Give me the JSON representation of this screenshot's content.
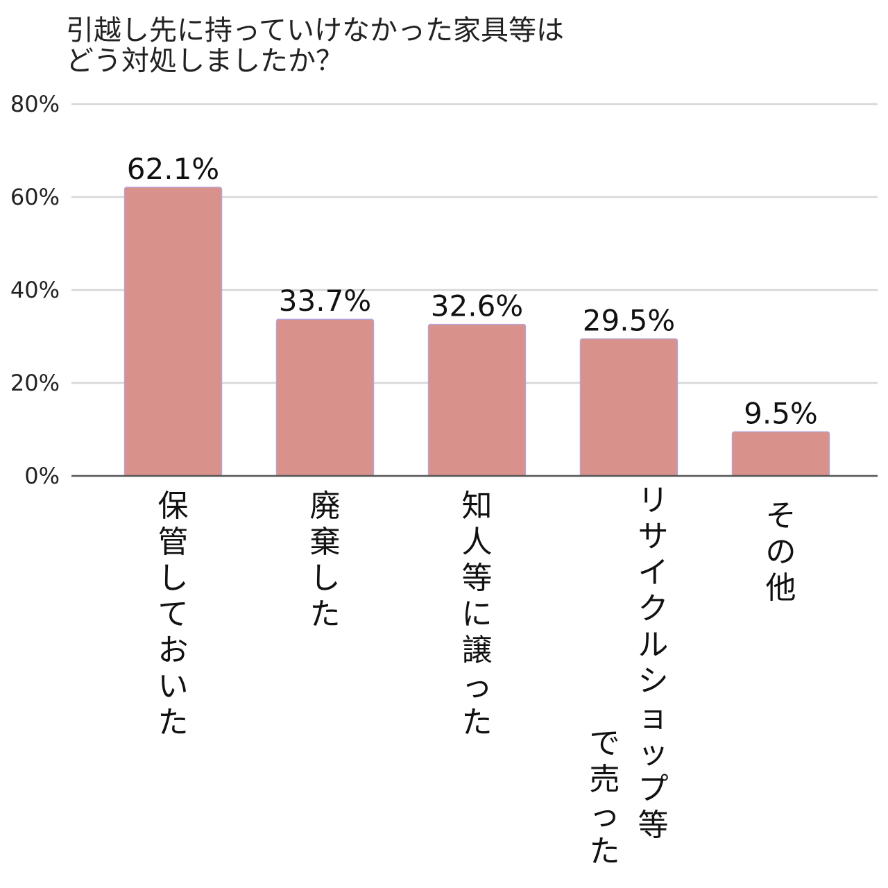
{
  "chart_data": {
    "type": "bar",
    "title_lines": [
      "引越し先に持っていけなかった家具等は",
      "どう対処しましたか？"
    ],
    "categories": [
      "保管しておいた",
      "廃棄した",
      "知人等に譲った",
      "リサイクルショップ等で売った",
      "その他"
    ],
    "category_label_columns": [
      [
        "保管しておいた"
      ],
      [
        "廃棄した"
      ],
      [
        "知人等に譲った"
      ],
      [
        "リサイクルショップ等",
        "で売った"
      ],
      [
        "その他"
      ]
    ],
    "values": [
      62.1,
      33.7,
      32.6,
      29.5,
      9.5
    ],
    "value_labels": [
      "62.1%",
      "33.7%",
      "32.6%",
      "29.5%",
      "9.5%"
    ],
    "ylim": [
      0,
      80
    ],
    "yticks": [
      0,
      20,
      40,
      60,
      80
    ],
    "ytick_labels": [
      "0%",
      "20%",
      "40%",
      "60%",
      "80%"
    ],
    "grid": true,
    "legend": "none",
    "bar_color": "#d9918b",
    "bar_edge_color": "#b7a3d6"
  }
}
